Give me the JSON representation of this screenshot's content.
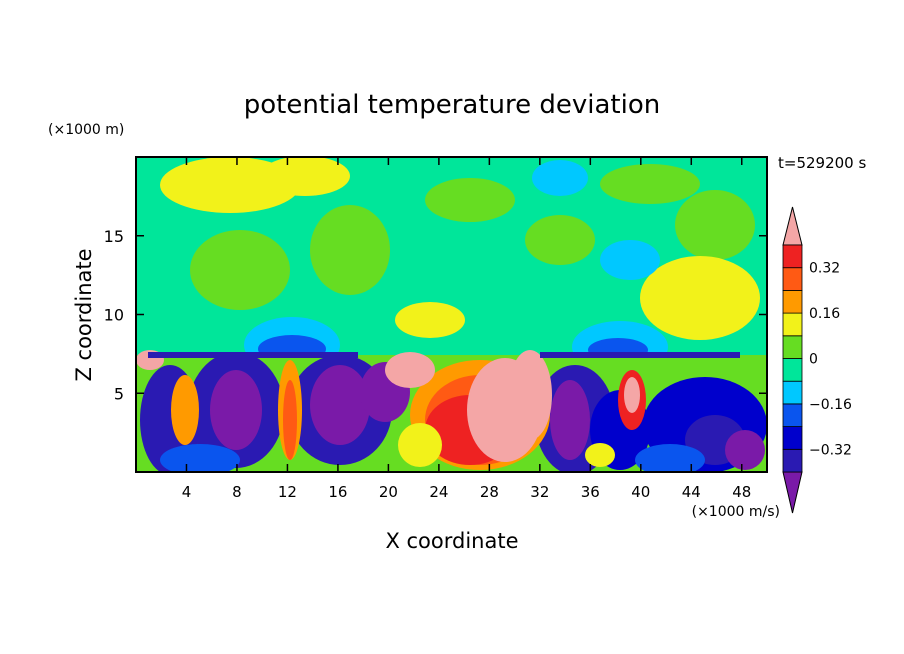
{
  "chart_data": {
    "type": "heatmap",
    "title": "potential temperature deviation",
    "xlabel": "X coordinate",
    "ylabel": "Z coordinate",
    "x_unit": "(×1000 m/s)",
    "y_unit": "(×1000 m)",
    "time_label": "t=529200 s",
    "xlim": [
      0,
      50
    ],
    "ylim": [
      0,
      20
    ],
    "x_ticks": [
      4,
      8,
      12,
      16,
      20,
      24,
      28,
      32,
      36,
      40,
      44,
      48
    ],
    "y_ticks": [
      5,
      10,
      15
    ],
    "colorbar": {
      "levels": [
        -0.48,
        -0.4,
        -0.32,
        -0.24,
        -0.16,
        -0.08,
        0,
        0.08,
        0.16,
        0.24,
        0.32,
        0.4
      ],
      "labels": [
        {
          "value": 0.32,
          "text": "0.32"
        },
        {
          "value": 0.16,
          "text": "0.16"
        },
        {
          "value": 0,
          "text": "0"
        },
        {
          "value": -0.16,
          "text": "−0.16"
        },
        {
          "value": -0.32,
          "text": "−0.32"
        }
      ],
      "colors": [
        "#7a1aa8",
        "#2a1ab2",
        "#0000cc",
        "#0a55ee",
        "#00c8ff",
        "#00e69a",
        "#66dd22",
        "#f2f21a",
        "#ff9a00",
        "#ff5a14",
        "#ee2222",
        "#f4a6a6"
      ],
      "extend": "both"
    },
    "background_color": "#00e69a"
  }
}
